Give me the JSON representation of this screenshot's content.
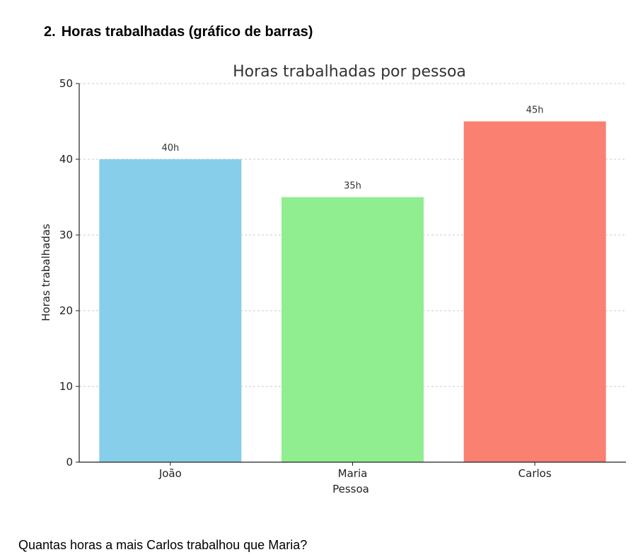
{
  "section": {
    "number": "2.",
    "title": "Horas trabalhadas (gráfico de barras)"
  },
  "question": "Quantas horas a mais Carlos trabalhou que Maria?",
  "chart_data": {
    "type": "bar",
    "title": "Horas trabalhadas por pessoa",
    "xlabel": "Pessoa",
    "ylabel": "Horas trabalhadas",
    "categories": [
      "João",
      "Maria",
      "Carlos"
    ],
    "values": [
      40,
      35,
      45
    ],
    "data_labels": [
      "40h",
      "35h",
      "45h"
    ],
    "colors": [
      "#87CEEB",
      "#90EE90",
      "#FA8072"
    ],
    "ylim": [
      0,
      50
    ],
    "yticks": [
      0,
      10,
      20,
      30,
      40,
      50
    ],
    "grid": true,
    "grid_style": "dashed"
  }
}
